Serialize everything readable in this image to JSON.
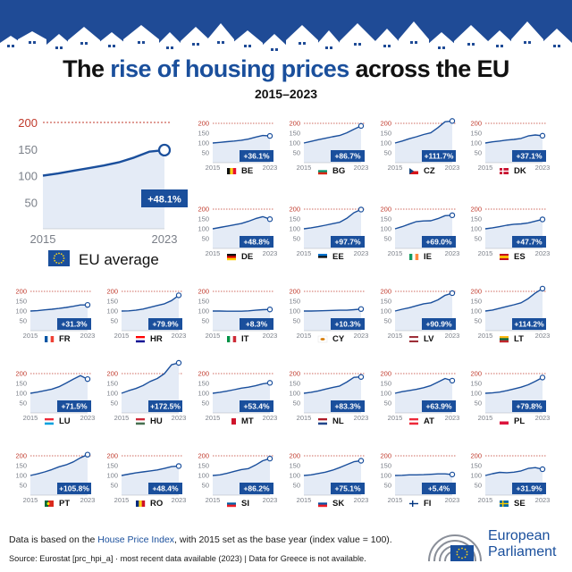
{
  "header": {
    "title_pre": "The ",
    "title_highlight": "rise of housing prices",
    "title_post": " across the EU",
    "subtitle": "2015–2023"
  },
  "colors": {
    "line": "#1a4f9c",
    "fill": "#e4ebf6",
    "badge": "#1a4f9c",
    "guide": "#c0392b",
    "banner": "#1f4b96"
  },
  "chart_data": {
    "type": "line",
    "x": [
      2015,
      2016,
      2017,
      2018,
      2019,
      2020,
      2021,
      2022,
      2023
    ],
    "ylim": [
      0,
      220
    ],
    "yticks": [
      50,
      100,
      150,
      200
    ],
    "x_tick_labels": [
      "2015",
      "2023"
    ],
    "series": [
      {
        "name": "EU average",
        "code": "EU",
        "change": "+48.1%",
        "values": [
          100,
          104,
          109,
          114,
          119,
          125,
          134,
          145,
          148
        ]
      },
      {
        "name": "BE",
        "change": "+36.1%",
        "values": [
          100,
          103,
          107,
          110,
          114,
          120,
          130,
          138,
          136
        ]
      },
      {
        "name": "BG",
        "change": "+86.7%",
        "values": [
          100,
          108,
          117,
          124,
          132,
          138,
          152,
          170,
          187
        ]
      },
      {
        "name": "CZ",
        "change": "+111.7%",
        "values": [
          100,
          110,
          122,
          132,
          143,
          152,
          178,
          208,
          212
        ]
      },
      {
        "name": "DK",
        "change": "+37.1%",
        "values": [
          100,
          106,
          110,
          115,
          118,
          123,
          136,
          141,
          137
        ]
      },
      {
        "name": "DE",
        "change": "+48.8%",
        "values": [
          100,
          107,
          113,
          120,
          127,
          138,
          152,
          162,
          149
        ]
      },
      {
        "name": "EE",
        "change": "+97.7%",
        "values": [
          100,
          105,
          111,
          118,
          126,
          133,
          153,
          182,
          198
        ]
      },
      {
        "name": "IE",
        "change": "+69.0%",
        "values": [
          100,
          111,
          124,
          137,
          140,
          141,
          152,
          167,
          169
        ]
      },
      {
        "name": "ES",
        "change": "+47.7%",
        "values": [
          100,
          105,
          111,
          118,
          123,
          125,
          130,
          139,
          148
        ]
      },
      {
        "name": "FR",
        "change": "+31.3%",
        "values": [
          100,
          102,
          106,
          109,
          113,
          118,
          124,
          131,
          131
        ]
      },
      {
        "name": "HR",
        "change": "+79.9%",
        "values": [
          100,
          101,
          104,
          110,
          119,
          128,
          137,
          153,
          180
        ]
      },
      {
        "name": "IT",
        "change": "+8.3%",
        "values": [
          100,
          100,
          99,
          99,
          99,
          101,
          104,
          107,
          108
        ]
      },
      {
        "name": "CY",
        "change": "+10.3%",
        "values": [
          100,
          100,
          101,
          102,
          103,
          104,
          104,
          107,
          110
        ]
      },
      {
        "name": "LV",
        "change": "+90.9%",
        "values": [
          100,
          109,
          117,
          127,
          137,
          142,
          157,
          180,
          191
        ]
      },
      {
        "name": "LT",
        "change": "+114.2%",
        "values": [
          100,
          105,
          114,
          123,
          132,
          142,
          163,
          192,
          214
        ]
      },
      {
        "name": "LU",
        "change": "+71.5%",
        "values": [
          100,
          106,
          113,
          121,
          133,
          152,
          172,
          190,
          172
        ]
      },
      {
        "name": "HU",
        "change": "+172.5%",
        "values": [
          100,
          113,
          124,
          139,
          160,
          175,
          200,
          245,
          272
        ]
      },
      {
        "name": "MT",
        "change": "+53.4%",
        "values": [
          100,
          105,
          111,
          118,
          126,
          131,
          138,
          148,
          153
        ]
      },
      {
        "name": "NL",
        "change": "+83.3%",
        "values": [
          100,
          105,
          112,
          121,
          129,
          137,
          157,
          181,
          183
        ]
      },
      {
        "name": "AT",
        "change": "+63.9%",
        "values": [
          100,
          108,
          114,
          120,
          128,
          139,
          157,
          175,
          164
        ]
      },
      {
        "name": "PL",
        "change": "+79.8%",
        "values": [
          100,
          102,
          106,
          113,
          122,
          131,
          143,
          161,
          180
        ]
      },
      {
        "name": "PT",
        "change": "+105.8%",
        "values": [
          100,
          108,
          118,
          130,
          144,
          154,
          169,
          190,
          206
        ]
      },
      {
        "name": "RO",
        "change": "+48.4%",
        "values": [
          100,
          107,
          113,
          118,
          123,
          128,
          136,
          145,
          148
        ]
      },
      {
        "name": "SI",
        "change": "+86.2%",
        "values": [
          100,
          103,
          111,
          121,
          130,
          135,
          153,
          175,
          186
        ]
      },
      {
        "name": "SK",
        "change": "+75.1%",
        "values": [
          100,
          103,
          110,
          117,
          127,
          140,
          155,
          170,
          175
        ]
      },
      {
        "name": "FI",
        "change": "+5.4%",
        "values": [
          100,
          101,
          103,
          103,
          104,
          106,
          108,
          108,
          105
        ]
      },
      {
        "name": "SE",
        "change": "+31.9%",
        "values": [
          100,
          109,
          116,
          114,
          117,
          123,
          136,
          140,
          132
        ]
      }
    ]
  },
  "legend": {
    "eu_label": "EU average"
  },
  "footnotes": {
    "line1_pre": "Data is based on the ",
    "line1_link": "House Price Index",
    "line1_post": ", with 2015 set as the base year (index value = 100).",
    "line2": "Source: Eurostat [prc_hpi_a]  ·  most recent data available (2023)  |  Data for Greece is not available."
  },
  "logo": {
    "line1": "European",
    "line2": "Parliament"
  }
}
